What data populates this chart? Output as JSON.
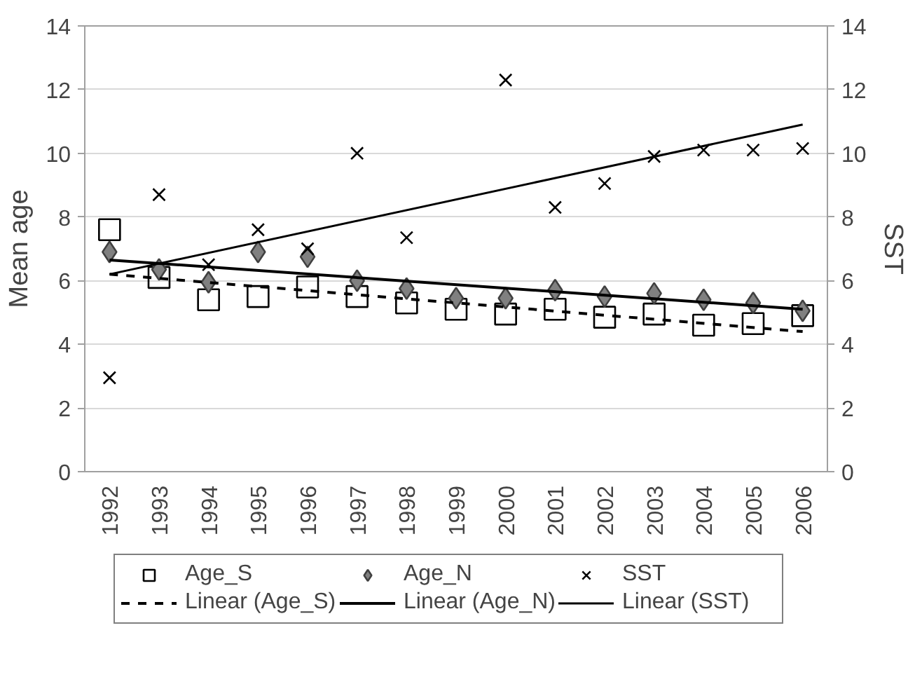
{
  "chart_data": {
    "type": "scatter",
    "ylabel": "Mean age",
    "y2label": "SST",
    "categories": [
      "1992",
      "1993",
      "1994",
      "1995",
      "1996",
      "1997",
      "1998",
      "1999",
      "2000",
      "2001",
      "2002",
      "2003",
      "2004",
      "2005",
      "2006"
    ],
    "series": [
      {
        "name": "Age_S",
        "color": "#000000",
        "marker": "square",
        "values": [
          7.6,
          6.1,
          5.4,
          5.5,
          5.8,
          5.5,
          5.3,
          5.1,
          4.95,
          5.1,
          4.85,
          4.95,
          4.6,
          4.65,
          4.9
        ]
      },
      {
        "name": "Age_N",
        "color": "#808080",
        "marker": "diamond",
        "values": [
          6.9,
          6.35,
          5.95,
          6.9,
          6.75,
          6.0,
          5.75,
          5.45,
          5.45,
          5.7,
          5.5,
          5.6,
          5.4,
          5.3,
          5.05
        ]
      },
      {
        "name": "SST",
        "color": "#000000",
        "marker": "cross",
        "axis": "y2",
        "values": [
          2.95,
          8.7,
          6.5,
          7.6,
          7.0,
          10.0,
          7.35,
          null,
          12.3,
          8.3,
          9.05,
          9.9,
          10.1,
          10.1,
          10.15
        ]
      },
      {
        "name": "Linear (Age_S)",
        "type": "line",
        "line_style": "dashed",
        "color": "#000000",
        "values": [
          6.2,
          null,
          null,
          null,
          null,
          null,
          null,
          null,
          null,
          null,
          null,
          null,
          null,
          null,
          4.4
        ]
      },
      {
        "name": "Linear (Age_N)",
        "type": "line",
        "line_style": "solid",
        "color": "#000000",
        "values": [
          6.65,
          null,
          null,
          null,
          null,
          null,
          null,
          null,
          null,
          null,
          null,
          null,
          null,
          null,
          5.1
        ]
      },
      {
        "name": "Linear (SST)",
        "type": "line",
        "line_style": "solid",
        "color": "#000000",
        "axis": "y2",
        "values": [
          6.2,
          null,
          null,
          null,
          null,
          null,
          null,
          null,
          null,
          null,
          null,
          null,
          null,
          null,
          10.9
        ]
      }
    ],
    "ylim": [
      0,
      14
    ],
    "yticks": [
      0,
      2,
      4,
      6,
      8,
      10,
      12,
      14
    ],
    "y2lim": [
      0,
      14
    ],
    "y2ticks": [
      0,
      2,
      4,
      6,
      8,
      10,
      12,
      14
    ],
    "grid": "y",
    "legend": "bottom"
  }
}
